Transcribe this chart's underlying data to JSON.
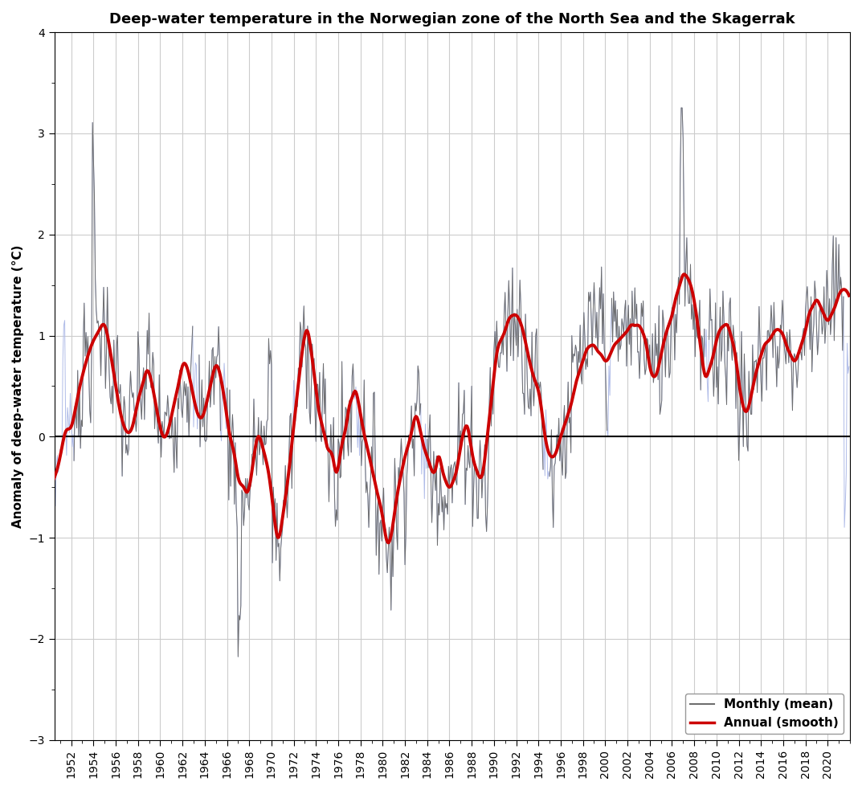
{
  "title": "Deep-water temperature in the Norwegian zone of the North Sea and the Skagerrak",
  "ylabel": "Anomaly of deep-water temperature (°C)",
  "xlim": [
    1950.5,
    2022.0
  ],
  "ylim": [
    -3.0,
    4.0
  ],
  "yticks": [
    -3,
    -2,
    -1,
    0,
    1,
    2,
    3,
    4
  ],
  "xtick_start": 1952,
  "xtick_step": 2,
  "xtick_end": 2020,
  "monthly_color_available": "#6e6e6e",
  "monthly_color_filled": "#b0bce8",
  "smooth_color": "#cc0000",
  "zero_line_color": "#000000",
  "background_color": "#ffffff",
  "grid_color": "#cccccc",
  "title_fontsize": 13,
  "label_fontsize": 11,
  "tick_fontsize": 10,
  "legend_fontsize": 11
}
